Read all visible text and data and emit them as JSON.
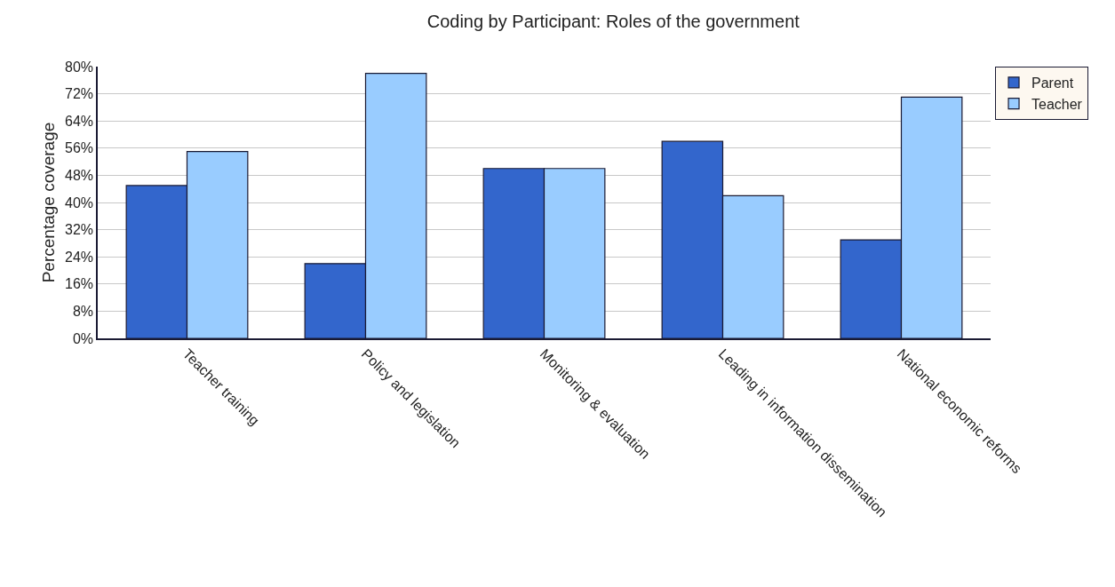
{
  "chart_data": {
    "type": "bar",
    "title": "Coding by Participant: Roles of the government",
    "ylabel": "Percentage coverage",
    "categories": [
      "Teacher training",
      "Policy and legislation",
      "Monitoring & evaluation",
      "Leading in information dissemination",
      "National economic reforms"
    ],
    "series": [
      {
        "name": "Parent",
        "color": "#3366cc",
        "values": [
          45,
          22,
          50,
          58,
          29
        ]
      },
      {
        "name": "Teacher",
        "color": "#99ccff",
        "values": [
          55,
          78,
          50,
          42,
          71
        ]
      }
    ],
    "ylim": [
      0,
      80
    ],
    "yticks": [
      {
        "value": 0,
        "label": "0%"
      },
      {
        "value": 8,
        "label": "8%"
      },
      {
        "value": 16,
        "label": "16%"
      },
      {
        "value": 24,
        "label": "24%"
      },
      {
        "value": 32,
        "label": "32%"
      },
      {
        "value": 40,
        "label": "40%"
      },
      {
        "value": 48,
        "label": "48%"
      },
      {
        "value": 56,
        "label": "56%"
      },
      {
        "value": 64,
        "label": "64%"
      },
      {
        "value": 72,
        "label": "72%"
      },
      {
        "value": 80,
        "label": "80%"
      }
    ],
    "grid": "y",
    "legend": "right"
  }
}
